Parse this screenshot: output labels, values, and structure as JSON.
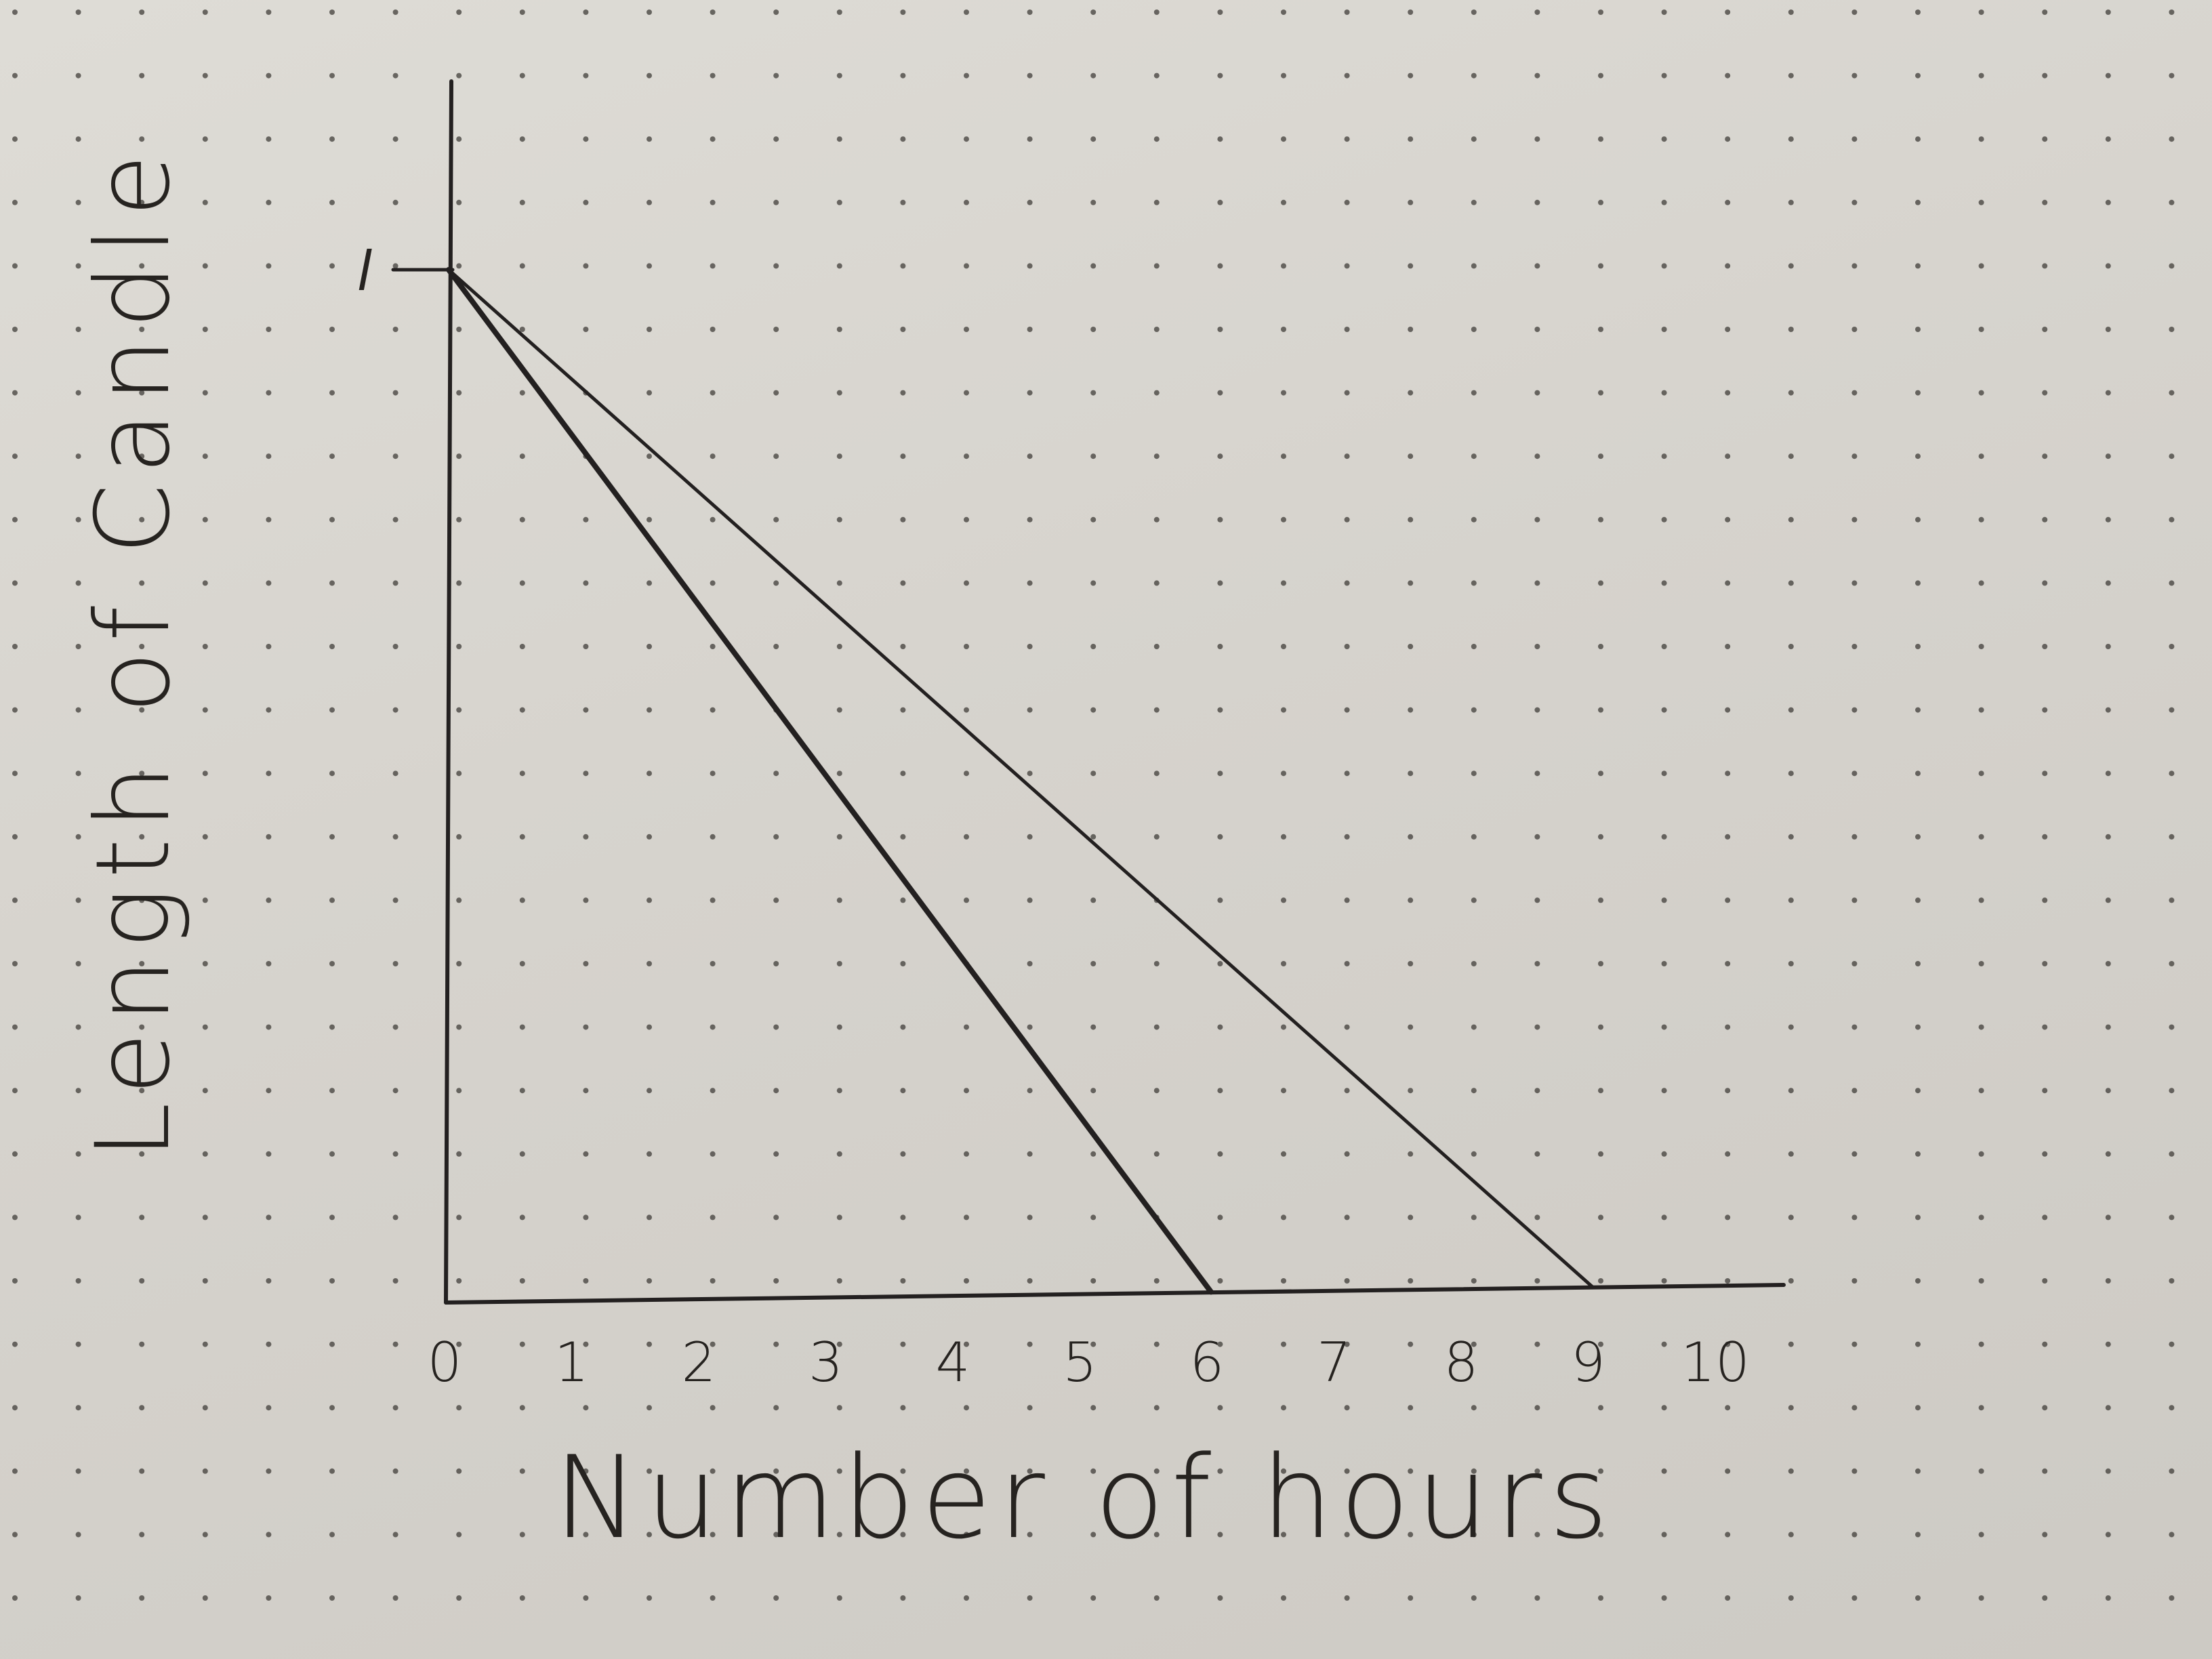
{
  "chart_data": {
    "type": "line",
    "xlabel": "Number of hours",
    "ylabel": "Length of Candle",
    "x_ticks": [
      "0",
      "1",
      "2",
      "3",
      "4",
      "5",
      "6",
      "7",
      "8",
      "9",
      "10"
    ],
    "y_ticks": [
      "l"
    ],
    "xlim": [
      0,
      10
    ],
    "ylim": [
      0,
      1.08
    ],
    "grid": "dot-grid paper",
    "legend": "none",
    "series": [
      {
        "x": [
          0,
          6
        ],
        "y": [
          1,
          0
        ]
      },
      {
        "x": [
          0,
          9
        ],
        "y": [
          1,
          0
        ]
      }
    ]
  },
  "colors": {
    "ink": "#232020",
    "paper": "#d9d6d0",
    "dots": "#3a3733"
  }
}
